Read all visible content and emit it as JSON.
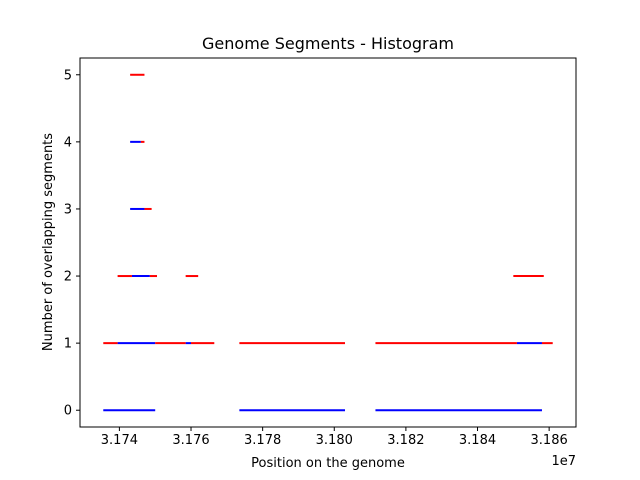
{
  "chart_data": {
    "type": "segment",
    "title": "Genome Segments - Histogram",
    "xlabel": "Position on the genome",
    "ylabel": "Number of overlapping segments",
    "x_offset_label": "1e7",
    "xlim": [
      3.1729,
      3.18675
    ],
    "ylim": [
      -0.25,
      5.25
    ],
    "x_ticks": [
      3.174,
      3.176,
      3.178,
      3.18,
      3.182,
      3.184,
      3.186
    ],
    "x_tick_labels": [
      "3.174",
      "3.176",
      "3.178",
      "3.180",
      "3.182",
      "3.184",
      "3.186"
    ],
    "y_ticks": [
      0,
      1,
      2,
      3,
      4,
      5
    ],
    "y_tick_labels": [
      "0",
      "1",
      "2",
      "3",
      "4",
      "5"
    ],
    "grid": false,
    "series": [
      {
        "color": "#0000ff",
        "segments": [
          {
            "y": 0,
            "x0": 3.17355,
            "x1": 3.175
          },
          {
            "y": 0,
            "x0": 3.17735,
            "x1": 3.1803
          },
          {
            "y": 0,
            "x0": 3.18115,
            "x1": 3.1858
          },
          {
            "y": 1,
            "x0": 3.17395,
            "x1": 3.175
          },
          {
            "y": 1,
            "x0": 3.17585,
            "x1": 3.176
          },
          {
            "y": 1,
            "x0": 3.1851,
            "x1": 3.1858
          },
          {
            "y": 2,
            "x0": 3.17435,
            "x1": 3.17485
          },
          {
            "y": 3,
            "x0": 3.1743,
            "x1": 3.1747
          },
          {
            "y": 4,
            "x0": 3.1743,
            "x1": 3.1746
          }
        ]
      },
      {
        "color": "#ff0000",
        "segments": [
          {
            "y": 1,
            "x0": 3.17355,
            "x1": 3.17395
          },
          {
            "y": 1,
            "x0": 3.175,
            "x1": 3.17585
          },
          {
            "y": 1,
            "x0": 3.176,
            "x1": 3.17665
          },
          {
            "y": 1,
            "x0": 3.17735,
            "x1": 3.1803
          },
          {
            "y": 1,
            "x0": 3.18115,
            "x1": 3.1851
          },
          {
            "y": 1,
            "x0": 3.1858,
            "x1": 3.1861
          },
          {
            "y": 2,
            "x0": 3.17395,
            "x1": 3.17435
          },
          {
            "y": 2,
            "x0": 3.17485,
            "x1": 3.17505
          },
          {
            "y": 2,
            "x0": 3.17585,
            "x1": 3.1762
          },
          {
            "y": 2,
            "x0": 3.185,
            "x1": 3.18585
          },
          {
            "y": 3,
            "x0": 3.1747,
            "x1": 3.1749
          },
          {
            "y": 4,
            "x0": 3.1746,
            "x1": 3.1747
          },
          {
            "y": 5,
            "x0": 3.1743,
            "x1": 3.1747
          }
        ]
      }
    ]
  }
}
